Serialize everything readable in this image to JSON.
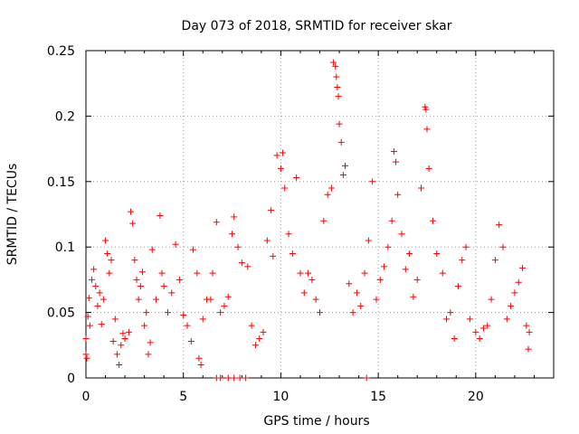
{
  "chart_data": {
    "type": "scatter",
    "title": "Day 073 of 2018, SRMTID for receiver skar",
    "xlabel": "GPS time / hours",
    "ylabel": "SRMTID / TECUs",
    "xlim": [
      0,
      24
    ],
    "ylim": [
      0,
      0.25
    ],
    "xticks": [
      0,
      5,
      10,
      15,
      20
    ],
    "xtick_labels": [
      "0",
      "5",
      "10",
      "15",
      "20"
    ],
    "yticks": [
      0,
      0.05,
      0.1,
      0.15,
      0.2,
      0.25
    ],
    "ytick_labels": [
      "0",
      "0.05",
      "0.1",
      "0.15",
      "0.2",
      "0.25"
    ],
    "grid": true,
    "marker": "plus",
    "color": "#ff0000",
    "series": [
      {
        "points": [
          [
            0.0,
            0.018
          ],
          [
            0.0,
            0.03
          ],
          [
            0.05,
            0.015
          ],
          [
            0.1,
            0.047
          ],
          [
            0.15,
            0.061
          ],
          [
            0.2,
            0.04
          ],
          [
            0.3,
            0.075
          ],
          [
            0.4,
            0.083
          ],
          [
            0.5,
            0.07
          ],
          [
            0.6,
            0.055
          ],
          [
            0.7,
            0.065
          ],
          [
            0.8,
            0.041
          ],
          [
            0.9,
            0.06
          ],
          [
            1.0,
            0.105
          ],
          [
            1.1,
            0.095
          ],
          [
            1.2,
            0.08
          ],
          [
            1.3,
            0.09
          ],
          [
            1.4,
            0.028
          ],
          [
            1.5,
            0.045
          ],
          [
            1.6,
            0.018
          ],
          [
            1.7,
            0.01
          ],
          [
            1.8,
            0.025
          ],
          [
            1.9,
            0.034
          ],
          [
            2.0,
            0.03
          ],
          [
            2.2,
            0.035
          ],
          [
            2.3,
            0.127
          ],
          [
            2.4,
            0.118
          ],
          [
            2.5,
            0.09
          ],
          [
            2.6,
            0.075
          ],
          [
            2.7,
            0.06
          ],
          [
            2.8,
            0.07
          ],
          [
            2.9,
            0.081
          ],
          [
            3.0,
            0.04
          ],
          [
            3.1,
            0.05
          ],
          [
            3.2,
            0.018
          ],
          [
            3.3,
            0.027
          ],
          [
            3.4,
            0.098
          ],
          [
            3.6,
            0.06
          ],
          [
            3.8,
            0.124
          ],
          [
            3.9,
            0.08
          ],
          [
            4.0,
            0.07
          ],
          [
            4.2,
            0.05
          ],
          [
            4.4,
            0.065
          ],
          [
            4.6,
            0.102
          ],
          [
            4.8,
            0.075
          ],
          [
            5.0,
            0.048
          ],
          [
            5.2,
            0.04
          ],
          [
            5.4,
            0.028
          ],
          [
            5.5,
            0.098
          ],
          [
            5.7,
            0.08
          ],
          [
            5.8,
            0.015
          ],
          [
            5.9,
            0.01
          ],
          [
            6.0,
            0.045
          ],
          [
            6.2,
            0.06
          ],
          [
            6.4,
            0.06
          ],
          [
            6.5,
            0.08
          ],
          [
            6.7,
            0.119
          ],
          [
            6.9,
            0.05
          ],
          [
            7.1,
            0.055
          ],
          [
            7.3,
            0.062
          ],
          [
            7.5,
            0.11
          ],
          [
            7.6,
            0.123
          ],
          [
            7.8,
            0.1
          ],
          [
            8.0,
            0.088
          ],
          [
            8.3,
            0.085
          ],
          [
            8.5,
            0.04
          ],
          [
            8.7,
            0.025
          ],
          [
            8.9,
            0.03
          ],
          [
            9.1,
            0.035
          ],
          [
            9.3,
            0.105
          ],
          [
            9.5,
            0.128
          ],
          [
            9.6,
            0.093
          ],
          [
            9.8,
            0.17
          ],
          [
            10.0,
            0.16
          ],
          [
            10.1,
            0.172
          ],
          [
            10.2,
            0.145
          ],
          [
            10.4,
            0.11
          ],
          [
            10.6,
            0.095
          ],
          [
            10.8,
            0.153
          ],
          [
            11.0,
            0.08
          ],
          [
            11.2,
            0.065
          ],
          [
            11.4,
            0.08
          ],
          [
            11.6,
            0.075
          ],
          [
            11.8,
            0.06
          ],
          [
            12.0,
            0.05
          ],
          [
            12.2,
            0.12
          ],
          [
            12.4,
            0.14
          ],
          [
            12.6,
            0.145
          ],
          [
            12.7,
            0.241
          ],
          [
            12.8,
            0.238
          ],
          [
            12.85,
            0.23
          ],
          [
            12.9,
            0.222
          ],
          [
            12.95,
            0.215
          ],
          [
            13.0,
            0.194
          ],
          [
            13.1,
            0.18
          ],
          [
            13.2,
            0.155
          ],
          [
            13.3,
            0.162
          ],
          [
            13.5,
            0.072
          ],
          [
            13.7,
            0.05
          ],
          [
            13.9,
            0.065
          ],
          [
            14.1,
            0.055
          ],
          [
            14.3,
            0.08
          ],
          [
            14.5,
            0.105
          ],
          [
            14.7,
            0.15
          ],
          [
            14.9,
            0.06
          ],
          [
            15.1,
            0.075
          ],
          [
            15.3,
            0.085
          ],
          [
            15.5,
            0.1
          ],
          [
            15.7,
            0.12
          ],
          [
            15.8,
            0.173
          ],
          [
            15.9,
            0.165
          ],
          [
            16.0,
            0.14
          ],
          [
            16.2,
            0.11
          ],
          [
            16.4,
            0.083
          ],
          [
            16.6,
            0.095
          ],
          [
            16.8,
            0.062
          ],
          [
            17.0,
            0.075
          ],
          [
            17.2,
            0.145
          ],
          [
            17.4,
            0.207
          ],
          [
            17.45,
            0.205
          ],
          [
            17.5,
            0.19
          ],
          [
            17.6,
            0.16
          ],
          [
            17.8,
            0.12
          ],
          [
            18.0,
            0.095
          ],
          [
            18.3,
            0.08
          ],
          [
            18.5,
            0.045
          ],
          [
            18.7,
            0.05
          ],
          [
            18.9,
            0.03
          ],
          [
            19.1,
            0.07
          ],
          [
            19.3,
            0.09
          ],
          [
            19.5,
            0.1
          ],
          [
            19.7,
            0.045
          ],
          [
            20.0,
            0.035
          ],
          [
            20.2,
            0.03
          ],
          [
            20.4,
            0.038
          ],
          [
            20.6,
            0.04
          ],
          [
            20.8,
            0.06
          ],
          [
            21.0,
            0.09
          ],
          [
            21.2,
            0.117
          ],
          [
            21.4,
            0.1
          ],
          [
            21.6,
            0.045
          ],
          [
            21.8,
            0.055
          ],
          [
            22.0,
            0.065
          ],
          [
            22.2,
            0.073
          ],
          [
            22.4,
            0.084
          ],
          [
            22.6,
            0.04
          ],
          [
            22.7,
            0.022
          ],
          [
            22.75,
            0.035
          ]
        ]
      },
      {
        "points": [
          [
            6.7,
            0.0
          ],
          [
            6.9,
            0.0
          ],
          [
            7.3,
            0.0
          ],
          [
            7.6,
            0.0
          ],
          [
            7.9,
            0.0
          ],
          [
            8.2,
            0.0
          ],
          [
            14.4,
            0.0
          ]
        ]
      }
    ]
  }
}
